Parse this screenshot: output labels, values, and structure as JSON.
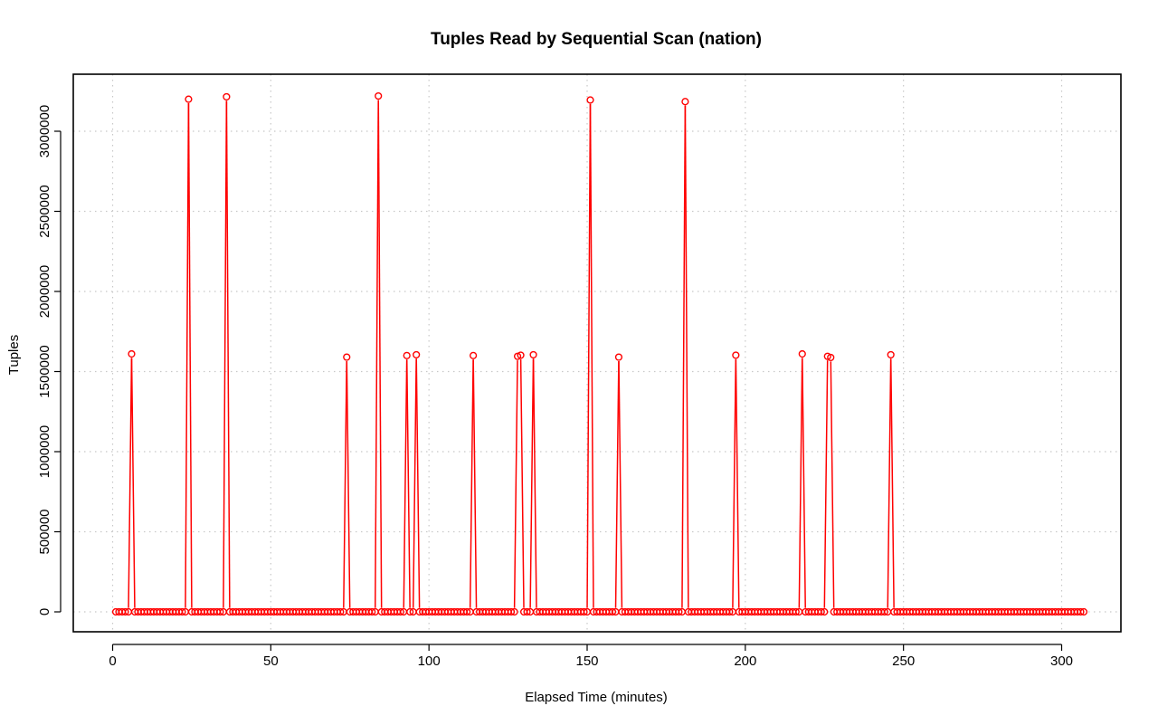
{
  "chart_data": {
    "type": "line",
    "title": "Tuples Read by Sequential Scan (nation)",
    "xlabel": "Elapsed Time (minutes)",
    "ylabel": "Tuples",
    "xlim": [
      0,
      307
    ],
    "ylim": [
      0,
      3220000
    ],
    "x_ticks": [
      0,
      50,
      100,
      150,
      200,
      250,
      300
    ],
    "y_ticks": [
      0,
      500000,
      1000000,
      1500000,
      2000000,
      2500000,
      3000000
    ],
    "x_start": 1,
    "x_end": 307,
    "baseline_value": 0,
    "grid": true,
    "style": "both",
    "series_color": "#ff0000",
    "peaks": [
      {
        "x": 6,
        "y": 1610000
      },
      {
        "x": 24,
        "y": 3200000
      },
      {
        "x": 36,
        "y": 3215000
      },
      {
        "x": 74,
        "y": 1590000
      },
      {
        "x": 84,
        "y": 3220000
      },
      {
        "x": 93,
        "y": 1600000
      },
      {
        "x": 96,
        "y": 1605000
      },
      {
        "x": 114,
        "y": 1600000
      },
      {
        "x": 128,
        "y": 1595000
      },
      {
        "x": 129,
        "y": 1602000
      },
      {
        "x": 133,
        "y": 1605000
      },
      {
        "x": 151,
        "y": 3195000
      },
      {
        "x": 160,
        "y": 1590000
      },
      {
        "x": 181,
        "y": 3185000
      },
      {
        "x": 197,
        "y": 1602000
      },
      {
        "x": 218,
        "y": 1610000
      },
      {
        "x": 226,
        "y": 1595000
      },
      {
        "x": 227,
        "y": 1588000
      },
      {
        "x": 246,
        "y": 1605000
      }
    ]
  }
}
